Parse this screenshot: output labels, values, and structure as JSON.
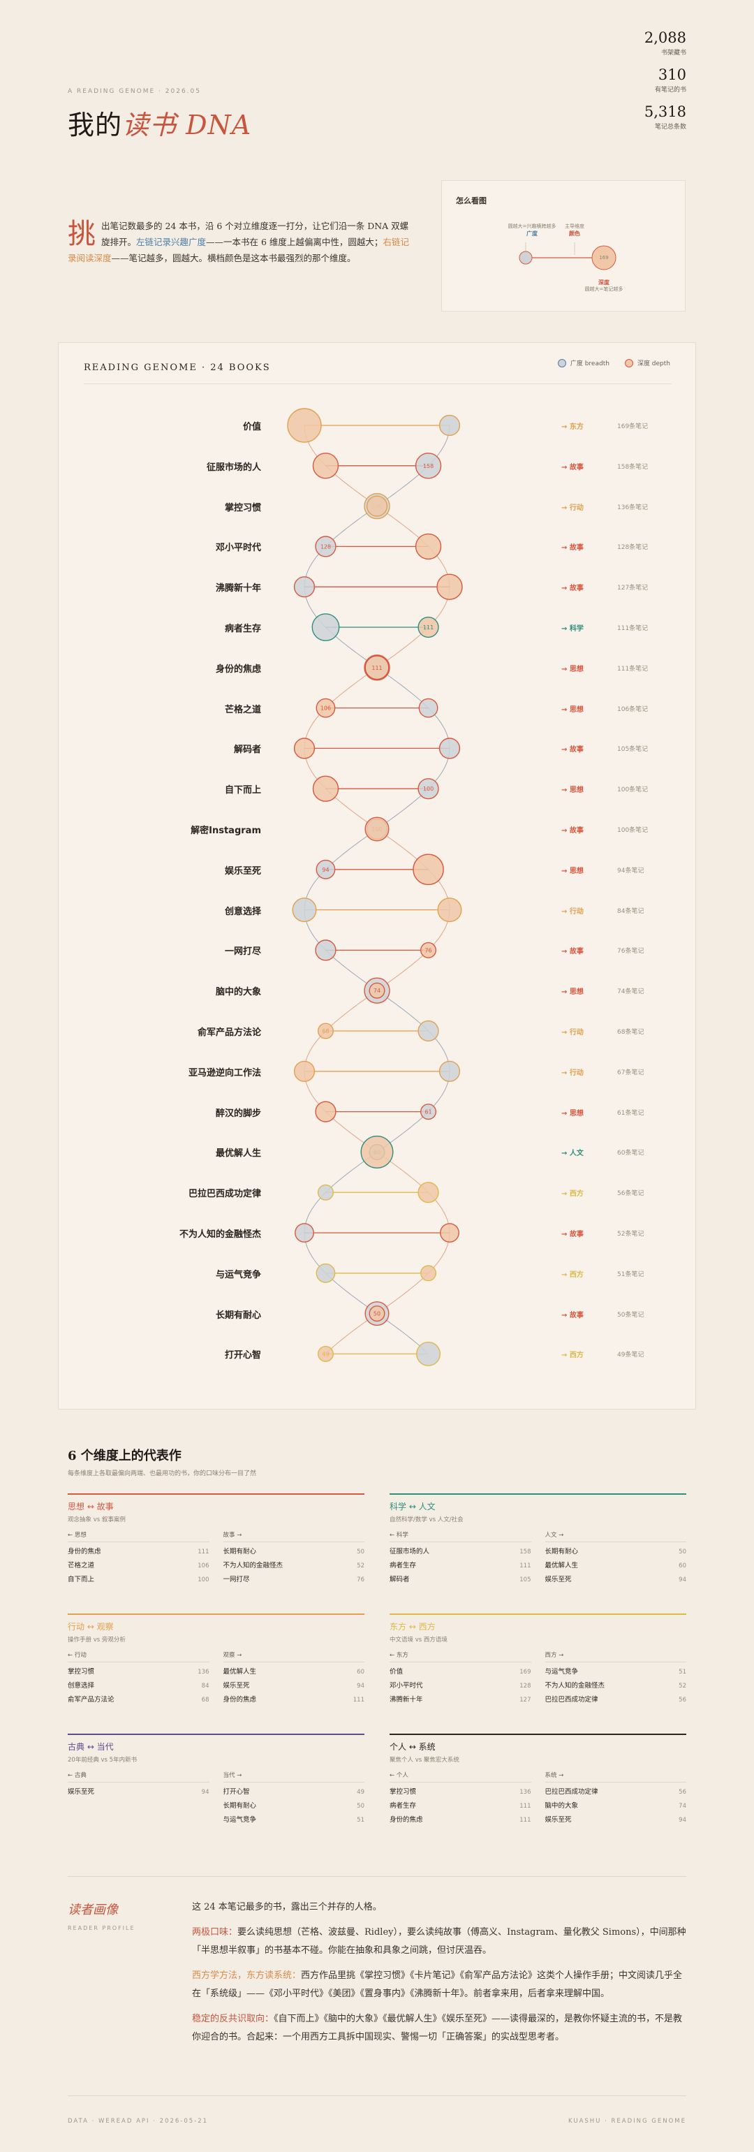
{
  "header": {
    "eyebrow": "A READING GENOME · 2026.05",
    "title_main": "我的",
    "title_accent": "读书 DNA",
    "stats": [
      {
        "num": "2,088",
        "label": "书架藏书"
      },
      {
        "num": "310",
        "label": "有笔记的书"
      },
      {
        "num": "5,318",
        "label": "笔记总条数"
      }
    ]
  },
  "intro": {
    "big_char": "挑",
    "p1": "出笔记数最多的 24 本书，沿 6 个对立维度逐一打分，让它们沿一条 DNA 双螺旋排开。",
    "left_label": "左链记录兴趣广度",
    "p2": "——一本书在 6 维度上越偏离中性，圆越大；",
    "right_label": "右链记录阅读深度",
    "p3": "——笔记越多，圆越大。横档颜色是这本书最强烈的那个维度。"
  },
  "howto": {
    "title": "怎么看图",
    "left_note": "圆越大=兴趣横跨越多",
    "left_label": "广度",
    "mid_note": "主导维度",
    "mid_label": "颜色",
    "right_num": "169",
    "right_label": "深度",
    "right_note": "圆越大=笔记越多"
  },
  "genome": {
    "title": "READING GENOME · 24 BOOKS",
    "legend_breadth": "广度 breadth",
    "legend_depth": "深度 depth",
    "books": [
      {
        "name": "价值",
        "tag": "→ 东方",
        "dim": "east",
        "notes": "169条笔记",
        "nl": "",
        "nr": "",
        "bl": 0.6,
        "dr": 1.0
      },
      {
        "name": "征服市场的人",
        "tag": "→ 故事",
        "dim": "story",
        "notes": "158条笔记",
        "nl": "158",
        "nr": "",
        "bl": 0.75,
        "dr": 0.75
      },
      {
        "name": "掌控习惯",
        "tag": "→ 行动",
        "dim": "action",
        "notes": "136条笔记",
        "nl": "136",
        "nr": "",
        "bl": 0.75,
        "dr": 0.6
      },
      {
        "name": "邓小平时代",
        "tag": "→ 故事",
        "dim": "story",
        "notes": "128条笔记",
        "nl": "128",
        "nr": "",
        "bl": 0.6,
        "dr": 0.75
      },
      {
        "name": "沸腾新十年",
        "tag": "→ 故事",
        "dim": "story",
        "notes": "127条笔记",
        "nl": "",
        "nr": "",
        "bl": 0.6,
        "dr": 0.75
      },
      {
        "name": "病者生存",
        "tag": "→ 科学",
        "dim": "science",
        "notes": "111条笔记",
        "nl": "",
        "nr": "111",
        "bl": 0.8,
        "dr": 0.6
      },
      {
        "name": "身份的焦虑",
        "tag": "→ 思想",
        "dim": "thought",
        "notes": "111条笔记",
        "nl": "",
        "nr": "111",
        "bl": 0.75,
        "dr": 0.7
      },
      {
        "name": "芒格之道",
        "tag": "→ 思想",
        "dim": "thought",
        "notes": "106条笔记",
        "nl": "",
        "nr": "106",
        "bl": 0.55,
        "dr": 0.55
      },
      {
        "name": "解码者",
        "tag": "→ 故事",
        "dim": "story",
        "notes": "105条笔记",
        "nl": "",
        "nr": "",
        "bl": 0.6,
        "dr": 0.6
      },
      {
        "name": "自下而上",
        "tag": "→ 思想",
        "dim": "thought",
        "notes": "100条笔记",
        "nl": "100",
        "nr": "",
        "bl": 0.6,
        "dr": 0.75
      },
      {
        "name": "解密Instagram",
        "tag": "→ 故事",
        "dim": "story",
        "notes": "100条笔记",
        "nl": "100",
        "nr": "",
        "bl": 0.6,
        "dr": 0.7
      },
      {
        "name": "娱乐至死",
        "tag": "→ 思想",
        "dim": "thought",
        "notes": "94条笔记",
        "nl": "94",
        "nr": "",
        "bl": 0.55,
        "dr": 0.9
      },
      {
        "name": "创意选择",
        "tag": "→ 行动",
        "dim": "action",
        "notes": "84条笔记",
        "nl": "",
        "nr": "",
        "bl": 0.7,
        "dr": 0.7
      },
      {
        "name": "一网打尽",
        "tag": "→ 故事",
        "dim": "story",
        "notes": "76条笔记",
        "nl": "",
        "nr": "76",
        "bl": 0.6,
        "dr": 0.45
      },
      {
        "name": "脑中的大象",
        "tag": "→ 思想",
        "dim": "thought",
        "notes": "74条笔记",
        "nl": "",
        "nr": "74",
        "bl": 0.75,
        "dr": 0.45
      },
      {
        "name": "俞军产品方法论",
        "tag": "→ 行动",
        "dim": "action",
        "notes": "68条笔记",
        "nl": "",
        "nr": "68",
        "bl": 0.6,
        "dr": 0.45
      },
      {
        "name": "亚马逊逆向工作法",
        "tag": "→ 行动",
        "dim": "action",
        "notes": "67条笔记",
        "nl": "",
        "nr": "",
        "bl": 0.6,
        "dr": 0.6
      },
      {
        "name": "醉汉的脚步",
        "tag": "→ 思想",
        "dim": "thought",
        "notes": "61条笔记",
        "nl": "61",
        "nr": "",
        "bl": 0.45,
        "dr": 0.6
      },
      {
        "name": "最优解人生",
        "tag": "→ 人文",
        "dim": "humanities",
        "notes": "60条笔记",
        "nl": "60",
        "nr": "",
        "bl": 0.45,
        "dr": 0.95
      },
      {
        "name": "巴拉巴西成功定律",
        "tag": "→ 西方",
        "dim": "west",
        "notes": "56条笔记",
        "nl": "",
        "nr": "",
        "bl": 0.45,
        "dr": 0.6
      },
      {
        "name": "不为人知的金融怪杰",
        "tag": "→ 故事",
        "dim": "story",
        "notes": "52条笔记",
        "nl": "",
        "nr": "",
        "bl": 0.55,
        "dr": 0.55
      },
      {
        "name": "与运气竞争",
        "tag": "→ 西方",
        "dim": "west",
        "notes": "51条笔记",
        "nl": "",
        "nr": "",
        "bl": 0.55,
        "dr": 0.45
      },
      {
        "name": "长期有耐心",
        "tag": "→ 故事",
        "dim": "story",
        "notes": "50条笔记",
        "nl": "",
        "nr": "50",
        "bl": 0.7,
        "dr": 0.45
      },
      {
        "name": "打开心智",
        "tag": "→ 西方",
        "dim": "west",
        "notes": "49条笔记",
        "nl": "",
        "nr": "49",
        "bl": 0.7,
        "dr": 0.45
      }
    ]
  },
  "colors": {
    "story": "#d9573f",
    "thought": "#d9573f",
    "action": "#e3a04e",
    "east": "#e3a04e",
    "west": "#e0b84a",
    "science": "#2f8f7c",
    "humanities": "#2f8f7c",
    "breadth_fill": "#cfd3d8",
    "depth_fill": "#f0c8a8"
  },
  "dimensions": {
    "title": "6 个维度上的代表作",
    "subtitle": "每条维度上各取最偏向两端、也最用功的书，你的口味分布一目了然",
    "items": [
      {
        "name_a": "思想",
        "name_b": "故事",
        "color": "#d9573f",
        "desc": "观念抽象 vs 叙事案例",
        "left_h": "← 思想",
        "right_h": "故事 →",
        "left": [
          [
            "身份的焦虑",
            "111"
          ],
          [
            "芒格之道",
            "106"
          ],
          [
            "自下而上",
            "100"
          ]
        ],
        "right": [
          [
            "长期有耐心",
            "50"
          ],
          [
            "不为人知的金融怪杰",
            "52"
          ],
          [
            "一网打尽",
            "76"
          ]
        ]
      },
      {
        "name_a": "科学",
        "name_b": "人文",
        "color": "#2f8f7c",
        "desc": "自然科学/数学 vs 人文/社会",
        "left_h": "← 科学",
        "right_h": "人文 →",
        "left": [
          [
            "征服市场的人",
            "158"
          ],
          [
            "病者生存",
            "111"
          ],
          [
            "解码者",
            "105"
          ]
        ],
        "right": [
          [
            "长期有耐心",
            "50"
          ],
          [
            "最优解人生",
            "60"
          ],
          [
            "娱乐至死",
            "94"
          ]
        ]
      },
      {
        "name_a": "行动",
        "name_b": "观察",
        "color": "#e3a04e",
        "desc": "操作手册 vs 旁观分析",
        "left_h": "← 行动",
        "right_h": "观察 →",
        "left": [
          [
            "掌控习惯",
            "136"
          ],
          [
            "创意选择",
            "84"
          ],
          [
            "俞军产品方法论",
            "68"
          ]
        ],
        "right": [
          [
            "最优解人生",
            "60"
          ],
          [
            "娱乐至死",
            "94"
          ],
          [
            "身份的焦虑",
            "111"
          ]
        ]
      },
      {
        "name_a": "东方",
        "name_b": "西方",
        "color": "#e0b84a",
        "desc": "中文语境 vs 西方语境",
        "left_h": "← 东方",
        "right_h": "西方 →",
        "left": [
          [
            "价值",
            "169"
          ],
          [
            "邓小平时代",
            "128"
          ],
          [
            "沸腾新十年",
            "127"
          ]
        ],
        "right": [
          [
            "与运气竞争",
            "51"
          ],
          [
            "不为人知的金融怪杰",
            "52"
          ],
          [
            "巴拉巴西成功定律",
            "56"
          ]
        ]
      },
      {
        "name_a": "古典",
        "name_b": "当代",
        "color": "#5b4f8a",
        "desc": "20年前经典 vs 5年内新书",
        "left_h": "← 古典",
        "right_h": "当代 →",
        "left": [
          [
            "娱乐至死",
            "94"
          ]
        ],
        "right": [
          [
            "打开心智",
            "49"
          ],
          [
            "长期有耐心",
            "50"
          ],
          [
            "与运气竞争",
            "51"
          ]
        ]
      },
      {
        "name_a": "个人",
        "name_b": "系统",
        "color": "#2b2520",
        "desc": "聚焦个人 vs 聚焦宏大系统",
        "left_h": "← 个人",
        "right_h": "系统 →",
        "left": [
          [
            "掌控习惯",
            "136"
          ],
          [
            "病者生存",
            "111"
          ],
          [
            "身份的焦虑",
            "111"
          ]
        ],
        "right": [
          [
            "巴拉巴西成功定律",
            "56"
          ],
          [
            "脑中的大象",
            "74"
          ],
          [
            "娱乐至死",
            "94"
          ]
        ]
      }
    ]
  },
  "profile": {
    "title": "读者画像",
    "subtitle": "READER PROFILE",
    "lead": "这 24 本笔记最多的书，露出三个并存的人格。",
    "p1_label": "两极口味：",
    "p1": "要么读纯思想（芒格、波兹曼、Ridley），要么读纯故事（傅高义、Instagram、量化教父 Simons），中间那种「半思想半叙事」的书基本不碰。你能在抽象和具象之间跳，但讨厌温吞。",
    "p2_label": "西方学方法，东方读系统：",
    "p2": "西方作品里挑《掌控习惯》《卡片笔记》《俞军产品方法论》这类个人操作手册；中文阅读几乎全在「系统级」——《邓小平时代》《美团》《置身事内》《沸腾新十年》。前者拿来用，后者拿来理解中国。",
    "p3_label": "稳定的反共识取向：",
    "p3": "《自下而上》《脑中的大象》《最优解人生》《娱乐至死》——读得最深的，是教你怀疑主流的书，不是教你迎合的书。合起来：一个用西方工具拆中国现实、警惕一切「正确答案」的实战型思考者。"
  },
  "footer": {
    "left": "DATA · WEREAD API · 2026-05-21",
    "right": "KUASHU · READING GENOME"
  }
}
